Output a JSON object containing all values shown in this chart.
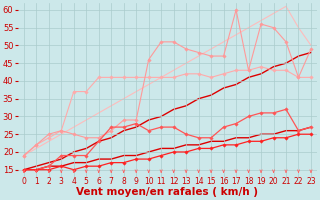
{
  "background_color": "#cce8ea",
  "grid_color": "#aacccc",
  "xlabel": "Vent moyen/en rafales ( km/h )",
  "xlabel_fontsize": 7.5,
  "ylabel_ticks": [
    15,
    20,
    25,
    30,
    35,
    40,
    45,
    50,
    55,
    60
  ],
  "xlim": [
    -0.5,
    23.5
  ],
  "ylim": [
    13,
    62
  ],
  "xticks": [
    0,
    1,
    2,
    3,
    4,
    5,
    6,
    7,
    8,
    9,
    10,
    11,
    12,
    13,
    14,
    15,
    16,
    17,
    18,
    19,
    20,
    21,
    22,
    23
  ],
  "series": [
    {
      "x": [
        0,
        1,
        2,
        3,
        4,
        5,
        6,
        7,
        8,
        9,
        10,
        11,
        12,
        13,
        14,
        15,
        16,
        17,
        18,
        19,
        20,
        21,
        22,
        23
      ],
      "y": [
        19,
        21,
        23,
        25,
        27,
        29,
        31,
        33,
        35,
        37,
        39,
        41,
        43,
        45,
        47,
        49,
        51,
        53,
        55,
        57,
        59,
        61,
        55,
        50
      ],
      "color": "#ffbbbb",
      "lw": 0.8,
      "marker": null,
      "zorder": 1
    },
    {
      "x": [
        0,
        1,
        2,
        3,
        4,
        5,
        6,
        7,
        8,
        9,
        10,
        11,
        12,
        13,
        14,
        15,
        16,
        17,
        18,
        19,
        20,
        21,
        22,
        23
      ],
      "y": [
        19,
        22,
        24,
        26,
        37,
        37,
        41,
        41,
        41,
        41,
        41,
        41,
        41,
        42,
        42,
        41,
        42,
        43,
        43,
        44,
        43,
        43,
        41,
        41
      ],
      "color": "#ffaaaa",
      "lw": 0.8,
      "marker": "D",
      "markersize": 1.8,
      "zorder": 2
    },
    {
      "x": [
        0,
        1,
        2,
        3,
        4,
        5,
        6,
        7,
        8,
        9,
        10,
        11,
        12,
        13,
        14,
        15,
        16,
        17,
        18,
        19,
        20,
        21,
        22,
        23
      ],
      "y": [
        19,
        22,
        25,
        26,
        25,
        24,
        24,
        26,
        29,
        29,
        46,
        51,
        51,
        49,
        48,
        47,
        47,
        60,
        43,
        56,
        55,
        51,
        41,
        49
      ],
      "color": "#ff9999",
      "lw": 0.8,
      "marker": "D",
      "markersize": 1.8,
      "zorder": 2
    },
    {
      "x": [
        0,
        1,
        2,
        3,
        4,
        5,
        6,
        7,
        8,
        9,
        10,
        11,
        12,
        13,
        14,
        15,
        16,
        17,
        18,
        19,
        20,
        21,
        22,
        23
      ],
      "y": [
        15,
        15,
        16,
        19,
        19,
        19,
        23,
        27,
        27,
        28,
        26,
        27,
        27,
        25,
        24,
        24,
        27,
        28,
        30,
        31,
        31,
        32,
        26,
        27
      ],
      "color": "#ff5555",
      "lw": 0.9,
      "marker": "D",
      "markersize": 1.8,
      "zorder": 3
    },
    {
      "x": [
        0,
        1,
        2,
        3,
        4,
        5,
        6,
        7,
        8,
        9,
        10,
        11,
        12,
        13,
        14,
        15,
        16,
        17,
        18,
        19,
        20,
        21,
        22,
        23
      ],
      "y": [
        15,
        16,
        17,
        18,
        20,
        21,
        23,
        24,
        26,
        27,
        29,
        30,
        32,
        33,
        35,
        36,
        38,
        39,
        41,
        42,
        44,
        45,
        47,
        48
      ],
      "color": "#dd0000",
      "lw": 1.0,
      "marker": null,
      "zorder": 1
    },
    {
      "x": [
        0,
        1,
        2,
        3,
        4,
        5,
        6,
        7,
        8,
        9,
        10,
        11,
        12,
        13,
        14,
        15,
        16,
        17,
        18,
        19,
        20,
        21,
        22,
        23
      ],
      "y": [
        15,
        15,
        16,
        16,
        17,
        17,
        18,
        18,
        19,
        19,
        20,
        21,
        21,
        22,
        22,
        23,
        23,
        24,
        24,
        25,
        25,
        26,
        26,
        27
      ],
      "color": "#dd0000",
      "lw": 1.0,
      "marker": null,
      "zorder": 1
    },
    {
      "x": [
        0,
        1,
        2,
        3,
        4,
        5,
        6,
        7,
        8,
        9,
        10,
        11,
        12,
        13,
        14,
        15,
        16,
        17,
        18,
        19,
        20,
        21,
        22,
        23
      ],
      "y": [
        15,
        15,
        15,
        16,
        15,
        16,
        16,
        17,
        17,
        18,
        18,
        19,
        20,
        20,
        21,
        21,
        22,
        22,
        23,
        23,
        24,
        24,
        25,
        25
      ],
      "color": "#ff2222",
      "lw": 0.9,
      "marker": "D",
      "markersize": 1.8,
      "zorder": 3
    }
  ],
  "arrow_color": "#ff6666",
  "tick_fontsize": 5.5,
  "tick_color": "#cc0000",
  "ytick_fontsize": 6.0
}
